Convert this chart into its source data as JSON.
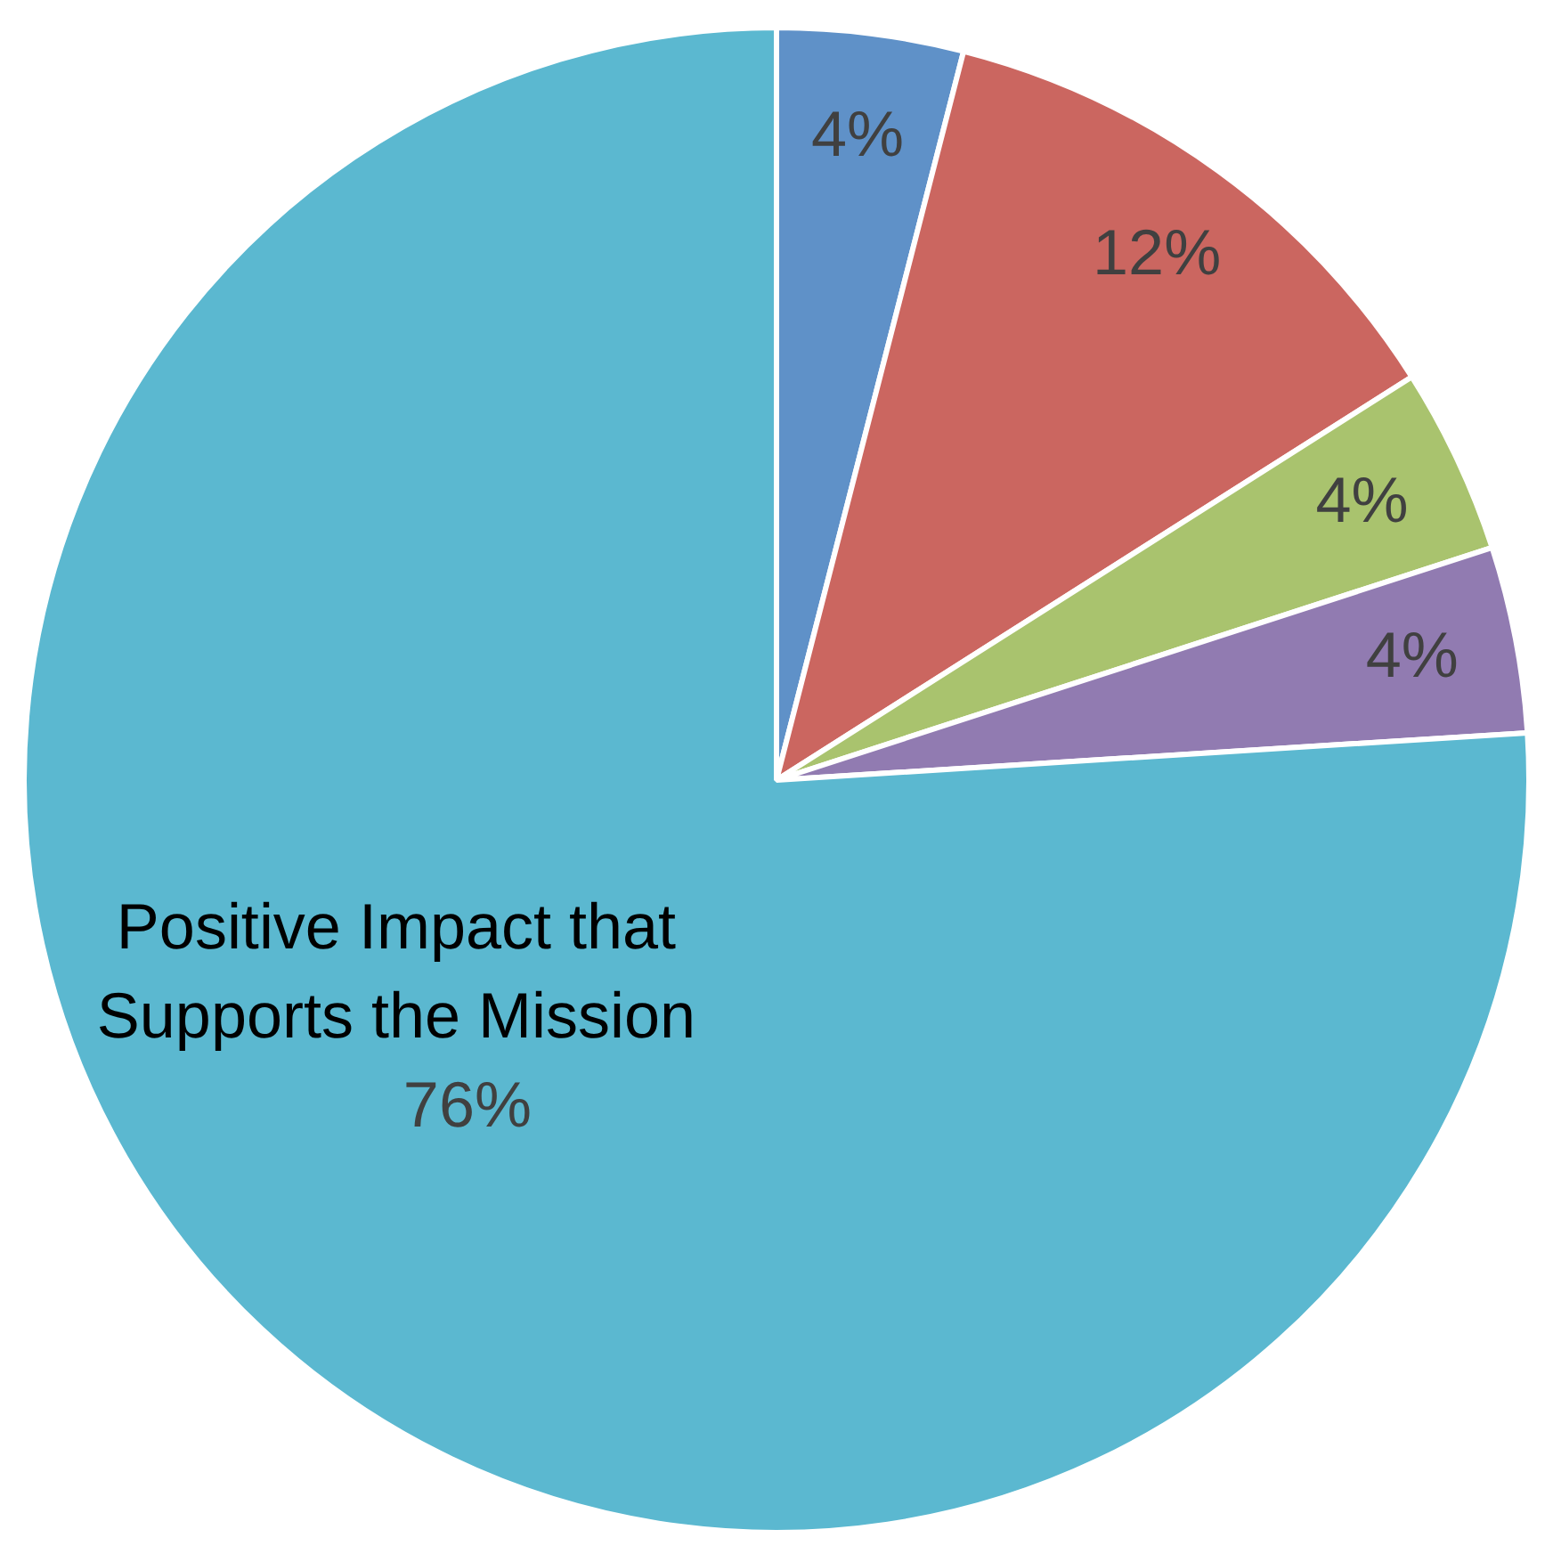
{
  "chart_data": {
    "type": "pie",
    "categories": [
      null,
      null,
      null,
      null,
      "Positive Impact that Supports the Mission"
    ],
    "values": [
      4,
      12,
      4,
      4,
      76
    ],
    "colors": [
      "#5f91c8",
      "#cb6660",
      "#a9c36e",
      "#917bb1",
      "#5bb8d0"
    ],
    "value_labels": [
      "4%",
      "12%",
      "4%",
      "4%",
      "76%"
    ],
    "legend": false
  }
}
